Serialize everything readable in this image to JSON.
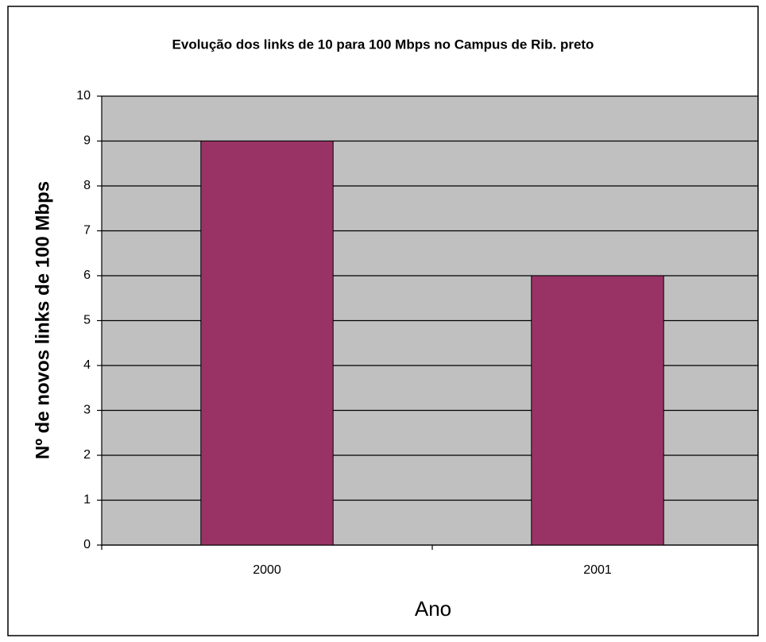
{
  "chart_data": {
    "type": "bar",
    "title": "Evolução dos links de 10 para 100 Mbps no Campus de Rib. preto",
    "x_label": "Ano",
    "y_label": "Nº de novos links de 100 Mbps",
    "categories": [
      "2000",
      "2001"
    ],
    "values": [
      9,
      6
    ],
    "color": "#993366",
    "ylim": [
      0,
      10
    ],
    "yticks": [
      0,
      1,
      2,
      3,
      4,
      5,
      6,
      7,
      8,
      9,
      10
    ],
    "grid": true
  }
}
